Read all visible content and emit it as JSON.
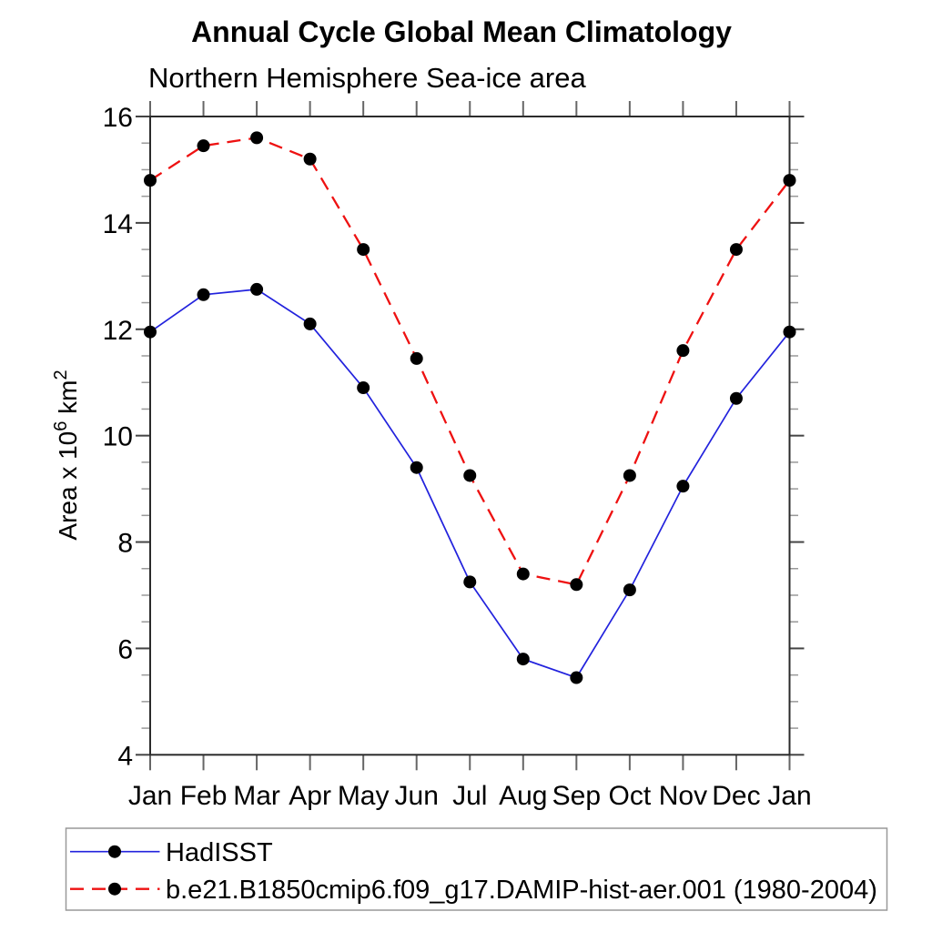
{
  "page": {
    "background": "#ffffff"
  },
  "chart_data": {
    "type": "line",
    "title": "Annual Cycle Global Mean Climatology",
    "subtitle": "Northern Hemisphere Sea-ice area",
    "ylabel": {
      "prefix": "Area x 10",
      "exponent": "6",
      "unit": " km",
      "unit_exponent": "2"
    },
    "xlabel": "",
    "categories": [
      "Jan",
      "Feb",
      "Mar",
      "Apr",
      "May",
      "Jun",
      "Jul",
      "Aug",
      "Sep",
      "Oct",
      "Nov",
      "Dec",
      "Jan"
    ],
    "ylim": [
      4,
      16
    ],
    "ytick_step": 2,
    "ytick_minor_step": 0.5,
    "ytick_values": [
      4,
      6,
      8,
      10,
      12,
      14,
      16
    ],
    "ytick_labels": [
      "4",
      "6",
      "8",
      "10",
      "12",
      "14",
      "16"
    ],
    "grid": false,
    "legend_position": "bottom-left-box",
    "marker": "filled-circle",
    "marker_color": "#000000",
    "series": [
      {
        "name": "HadISST",
        "color": "#2222dd",
        "style": "solid",
        "marker_color": "#000000",
        "values": [
          11.95,
          12.65,
          12.75,
          12.1,
          10.9,
          9.4,
          7.25,
          5.8,
          5.45,
          7.1,
          9.05,
          10.7,
          11.95
        ]
      },
      {
        "name": "b.e21.B1850cmip6.f09_g17.DAMIP-hist-aer.001 (1980-2004)",
        "color": "#ee1111",
        "style": "dashed",
        "marker_color": "#000000",
        "values": [
          14.8,
          15.45,
          15.6,
          15.2,
          13.5,
          11.45,
          9.25,
          7.4,
          7.2,
          9.25,
          11.6,
          13.5,
          14.8
        ]
      }
    ]
  }
}
